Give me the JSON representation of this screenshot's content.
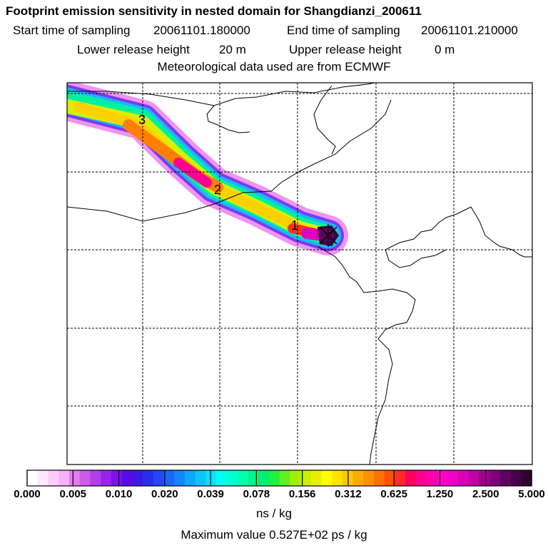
{
  "header": {
    "title": "Footprint emission sensitivity in nested domain for Shangdianzi_200611",
    "start_label": "Start time of sampling",
    "start_value": "20061101.180000",
    "end_label": "End time of sampling",
    "end_value": "20061101.210000",
    "lower_label": "Lower release height",
    "lower_value": "20 m",
    "upper_label": "Upper release height",
    "upper_value": "0 m",
    "met_line": "Meteorological data used are from ECMWF"
  },
  "chart_data": {
    "type": "heatmap",
    "title": "Footprint emission sensitivity in nested domain for Shangdianzi_200611",
    "colorbar": {
      "ticks": [
        "0.000",
        "0.005",
        "0.010",
        "0.020",
        "0.039",
        "0.078",
        "0.156",
        "0.312",
        "0.625",
        "1.250",
        "2.500",
        "5.000"
      ],
      "colors": [
        "#ffffff",
        "#ffe8ff",
        "#fccdfb",
        "#f5b3f7",
        "#e17df0",
        "#cd5ae8",
        "#b23fec",
        "#9a22f0",
        "#7a11ee",
        "#5a0ae6",
        "#3d16e8",
        "#2a2cf0",
        "#1e4af5",
        "#1968fa",
        "#1386ff",
        "#0ea6ff",
        "#09c6ff",
        "#05e4ff",
        "#00ffee",
        "#00ffd0",
        "#00ffb0",
        "#00f890",
        "#00f070",
        "#20f040",
        "#60f020",
        "#a0f000",
        "#c8f000",
        "#e8f000",
        "#ffff00",
        "#ffe400",
        "#ffc800",
        "#ffac00",
        "#ff9000",
        "#ff7000",
        "#ff5000",
        "#ff2a2a",
        "#ff0060",
        "#ff0090",
        "#ff00b0",
        "#ff00c8",
        "#f000c8",
        "#d800b8",
        "#c000a8",
        "#a00090",
        "#80007a",
        "#600060",
        "#480048",
        "#300030"
      ],
      "units": "ns / kg"
    },
    "max_value_text": "Maximum value  0.527E+02 ps / kg",
    "trajectory_labels": [
      "3",
      "2",
      "1"
    ],
    "grid": true
  }
}
